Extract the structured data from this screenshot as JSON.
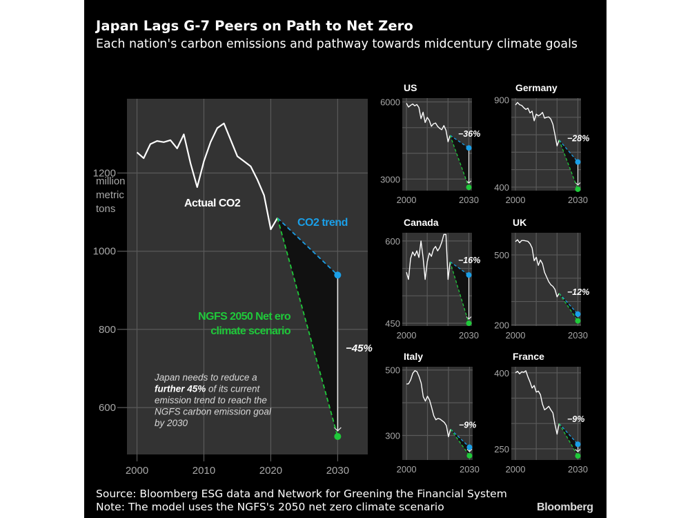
{
  "title": "Japan Lags G-7 Peers on Path to Net Zero",
  "subtitle": "Each nation's carbon emissions and pathway towards midcentury climate goals",
  "source": "Source: Bloomberg ESG data and Network for Greening the Financial System",
  "note": "Note: The model uses the NGFS's 2050 net zero climate scenario",
  "logo": "Bloomberg",
  "colors": {
    "background": "#000000",
    "panel": "#333333",
    "actual": "#ffffff",
    "trend": "#1a9fe8",
    "ngfs": "#1fc93a",
    "gap_fill": "#111111",
    "grid": "#5a5a5a"
  },
  "chart_data": [
    {
      "type": "line",
      "name": "Japan",
      "title": "",
      "ylabel": "million metric tons",
      "ylabel_lines": [
        "million",
        "metric",
        "tons"
      ],
      "xlim": [
        1998.5,
        2034.5
      ],
      "ylim": [
        480,
        1390
      ],
      "xticks": [
        2000,
        2010,
        2020,
        2030
      ],
      "yticks": [
        600,
        800,
        1000,
        1200
      ],
      "grid": true,
      "annotations": {
        "actual_label": "Actual CO2",
        "trend_label": "CO2 trend",
        "ngfs_label_lines": [
          "NGFS 2050 Net ero",
          "climate scenario"
        ],
        "gap_label": "−45%",
        "note_lines": [
          {
            "segments": [
              {
                "text": "Japan needs to reduce a",
                "bold": false
              }
            ]
          },
          {
            "segments": [
              {
                "text": "further 45%",
                "bold": true
              },
              {
                "text": " of its current",
                "bold": false
              }
            ]
          },
          {
            "segments": [
              {
                "text": "emission trend to reach the",
                "bold": false
              }
            ]
          },
          {
            "segments": [
              {
                "text": "NGFS carbon emission goal",
                "bold": false
              }
            ]
          },
          {
            "segments": [
              {
                "text": "by 2030",
                "bold": false
              }
            ]
          }
        ]
      },
      "series": [
        {
          "name": "Actual CO2",
          "x": [
            2000,
            2001,
            2002,
            2003,
            2004,
            2005,
            2006,
            2007,
            2008,
            2009,
            2010,
            2011,
            2012,
            2013,
            2014,
            2015,
            2016,
            2017,
            2018,
            2019,
            2020,
            2021
          ],
          "values": [
            1253,
            1238,
            1274,
            1282,
            1279,
            1284,
            1263,
            1299,
            1225,
            1164,
            1230,
            1279,
            1315,
            1327,
            1285,
            1243,
            1230,
            1217,
            1183,
            1143,
            1056,
            1085
          ]
        },
        {
          "name": "CO2 trend",
          "x": [
            2021,
            2030
          ],
          "values": [
            1085,
            939
          ]
        },
        {
          "name": "NGFS 2050 Net Zero climate scenario",
          "x": [
            2021,
            2030
          ],
          "values": [
            1085,
            526
          ]
        }
      ],
      "gap_percent": -45
    },
    {
      "type": "line",
      "name": "US",
      "title": "US",
      "xlim": [
        1998,
        2031.5
      ],
      "ylim": [
        2550,
        6150
      ],
      "xticks": [
        2000,
        2030
      ],
      "xgrid": [
        2000,
        2010,
        2020,
        2030
      ],
      "yticks": [
        3000,
        6000
      ],
      "ygrid": [
        3000,
        4000,
        5000,
        6000
      ],
      "gap_label": "−36%",
      "gap_percent": -36,
      "series": [
        {
          "name": "Actual CO2",
          "x": [
            2000,
            2001,
            2002,
            2003,
            2004,
            2005,
            2006,
            2007,
            2008,
            2009,
            2010,
            2011,
            2012,
            2013,
            2014,
            2015,
            2016,
            2017,
            2018,
            2019,
            2020,
            2021
          ],
          "values": [
            5950,
            5800,
            5870,
            5920,
            5850,
            5900,
            5780,
            5350,
            5600,
            5200,
            5400,
            5280,
            5050,
            5150,
            5180,
            5050,
            4970,
            4920,
            5080,
            4900,
            4450,
            4700
          ]
        },
        {
          "name": "CO2 trend",
          "x": [
            2021,
            2030
          ],
          "values": [
            4700,
            4210
          ]
        },
        {
          "name": "NGFS 2050 Net Zero climate scenario",
          "x": [
            2021,
            2030
          ],
          "values": [
            4700,
            2680
          ]
        }
      ]
    },
    {
      "type": "line",
      "name": "Germany",
      "title": "Germany",
      "xlim": [
        1998,
        2031.5
      ],
      "ylim": [
        380,
        910
      ],
      "xticks": [
        2000,
        2030
      ],
      "xgrid": [
        2000,
        2010,
        2020,
        2030
      ],
      "yticks": [
        400,
        900
      ],
      "ygrid": [
        400,
        500,
        600,
        700,
        800,
        900
      ],
      "gap_label": "−28%",
      "gap_percent": -28,
      "series": [
        {
          "name": "Actual CO2",
          "x": [
            2000,
            2001,
            2002,
            2003,
            2004,
            2005,
            2006,
            2007,
            2008,
            2009,
            2010,
            2011,
            2012,
            2013,
            2014,
            2015,
            2016,
            2017,
            2018,
            2019,
            2020,
            2021
          ],
          "values": [
            870,
            885,
            872,
            868,
            855,
            845,
            852,
            825,
            835,
            780,
            818,
            808,
            815,
            828,
            795,
            800,
            802,
            790,
            760,
            700,
            636,
            670
          ]
        },
        {
          "name": "CO2 trend",
          "x": [
            2021,
            2030
          ],
          "values": [
            670,
            544
          ]
        },
        {
          "name": "NGFS 2050 Net Zero climate scenario",
          "x": [
            2021,
            2030
          ],
          "values": [
            670,
            388
          ]
        }
      ]
    },
    {
      "type": "line",
      "name": "Canada",
      "title": "Canada",
      "xlim": [
        1998,
        2031.5
      ],
      "ylim": [
        445,
        615
      ],
      "xticks": [
        2000,
        2030
      ],
      "xgrid": [
        2000,
        2010,
        2020,
        2030
      ],
      "yticks": [
        450,
        600
      ],
      "ygrid": [
        450,
        500,
        550,
        600
      ],
      "gap_label": "−16%",
      "gap_percent": -16,
      "series": [
        {
          "name": "Actual CO2",
          "x": [
            2000,
            2001,
            2002,
            2003,
            2004,
            2005,
            2006,
            2007,
            2008,
            2009,
            2010,
            2011,
            2012,
            2013,
            2014,
            2015,
            2016,
            2017,
            2018,
            2019,
            2020,
            2021
          ],
          "values": [
            543,
            530,
            568,
            580,
            573,
            582,
            570,
            600,
            570,
            530,
            562,
            578,
            572,
            585,
            590,
            582,
            588,
            598,
            612,
            612,
            530,
            562
          ]
        },
        {
          "name": "CO2 trend",
          "x": [
            2021,
            2030
          ],
          "values": [
            562,
            538
          ]
        },
        {
          "name": "NGFS 2050 Net Zero climate scenario",
          "x": [
            2021,
            2030
          ],
          "values": [
            562,
            450
          ]
        }
      ]
    },
    {
      "type": "line",
      "name": "UK",
      "title": "UK",
      "xlim": [
        1998,
        2031.5
      ],
      "ylim": [
        195,
        595
      ],
      "xticks": [
        2000,
        2030
      ],
      "xgrid": [
        2000,
        2010,
        2020,
        2030
      ],
      "yticks": [
        200,
        500
      ],
      "ygrid": [
        200,
        300,
        400,
        500
      ],
      "gap_label": "−12%",
      "gap_percent": -12,
      "series": [
        {
          "name": "Actual CO2",
          "x": [
            2000,
            2001,
            2002,
            2003,
            2004,
            2005,
            2006,
            2007,
            2008,
            2009,
            2010,
            2011,
            2012,
            2013,
            2014,
            2015,
            2016,
            2017,
            2018,
            2019,
            2020,
            2021
          ],
          "values": [
            557,
            565,
            552,
            562,
            562,
            560,
            558,
            548,
            530,
            475,
            490,
            455,
            478,
            462,
            425,
            405,
            385,
            372,
            365,
            352,
            320,
            335
          ]
        },
        {
          "name": "CO2 trend",
          "x": [
            2021,
            2030
          ],
          "values": [
            335,
            246
          ]
        },
        {
          "name": "NGFS 2050 Net Zero climate scenario",
          "x": [
            2021,
            2030
          ],
          "values": [
            335,
            217
          ]
        }
      ]
    },
    {
      "type": "line",
      "name": "Italy",
      "title": "Italy",
      "xlim": [
        1998,
        2031.5
      ],
      "ylim": [
        225,
        510
      ],
      "xticks": [
        2000,
        2030
      ],
      "xgrid": [
        2000,
        2010,
        2020,
        2030
      ],
      "yticks": [
        300,
        500
      ],
      "ygrid": [
        300,
        400,
        500
      ],
      "gap_label": "−9%",
      "gap_percent": -9,
      "series": [
        {
          "name": "Actual CO2",
          "x": [
            2000,
            2001,
            2002,
            2003,
            2004,
            2005,
            2006,
            2007,
            2008,
            2009,
            2010,
            2011,
            2012,
            2013,
            2014,
            2015,
            2016,
            2017,
            2018,
            2019,
            2020,
            2021
          ],
          "values": [
            457,
            458,
            470,
            490,
            498,
            495,
            480,
            460,
            418,
            405,
            420,
            408,
            385,
            360,
            348,
            352,
            350,
            345,
            340,
            330,
            296,
            319
          ]
        },
        {
          "name": "CO2 trend",
          "x": [
            2021,
            2030
          ],
          "values": [
            319,
            264
          ]
        },
        {
          "name": "NGFS 2050 Net Zero climate scenario",
          "x": [
            2021,
            2030
          ],
          "values": [
            319,
            238
          ]
        }
      ]
    },
    {
      "type": "line",
      "name": "France",
      "title": "France",
      "xlim": [
        1998,
        2031.5
      ],
      "ylim": [
        228,
        412
      ],
      "xticks": [
        2000,
        2030
      ],
      "xgrid": [
        2000,
        2010,
        2020,
        2030
      ],
      "yticks": [
        250,
        400
      ],
      "ygrid": [
        250,
        300,
        350,
        400
      ],
      "gap_label": "−9%",
      "gap_percent": -9,
      "series": [
        {
          "name": "Actual CO2",
          "x": [
            2000,
            2001,
            2002,
            2003,
            2004,
            2005,
            2006,
            2007,
            2008,
            2009,
            2010,
            2011,
            2012,
            2013,
            2014,
            2015,
            2016,
            2017,
            2018,
            2019,
            2020,
            2021
          ],
          "values": [
            400,
            403,
            398,
            402,
            401,
            404,
            392,
            382,
            370,
            375,
            362,
            364,
            357,
            338,
            327,
            330,
            334,
            327,
            321,
            298,
            279,
            300
          ]
        },
        {
          "name": "CO2 trend",
          "x": [
            2021,
            2030
          ],
          "values": [
            300,
            259
          ]
        },
        {
          "name": "NGFS 2050 Net Zero climate scenario",
          "x": [
            2021,
            2030
          ],
          "values": [
            300,
            236
          ]
        }
      ]
    }
  ]
}
